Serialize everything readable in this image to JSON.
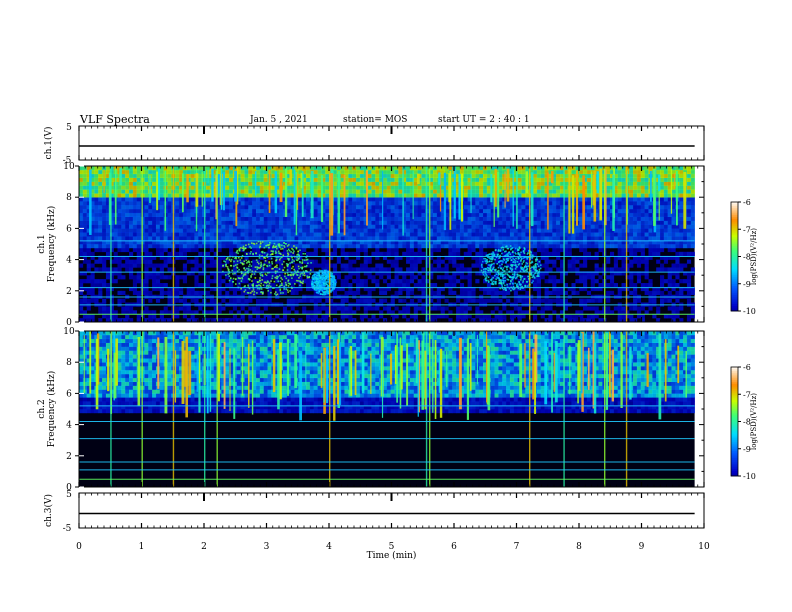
{
  "header": {
    "title": "VLF Spectra",
    "date": "Jan. 5 , 2021",
    "station": "station= MOS",
    "start": "start UT =  2 : 40 : 1"
  },
  "chart_data": [
    {
      "type": "line",
      "panel": "ch1-voltage",
      "ylabel": "ch.1(V)",
      "ylim": [
        -5,
        5
      ],
      "yticks": [
        "5",
        "-5"
      ],
      "x": [
        0,
        9.85
      ],
      "series": [
        {
          "values": [
            0,
            0
          ]
        }
      ]
    },
    {
      "type": "heatmap",
      "panel": "ch1-spectrogram",
      "ylabel": "ch.1\nFrequency (kHz)",
      "ylim": [
        0,
        10
      ],
      "yticks": [
        "0",
        "2",
        "4",
        "6",
        "8",
        "10"
      ],
      "xlim": [
        0,
        10
      ],
      "data_extent_x": [
        0,
        9.85
      ],
      "colorbar": {
        "label": "log(PSD)(V²/Hz)",
        "range": [
          -10,
          -6
        ],
        "ticks": [
          "-6",
          "-7",
          "-8",
          "-9",
          "-10"
        ]
      },
      "horizontal_lines_khz": [
        0.5,
        1.1,
        1.6,
        2.2,
        3.2,
        4.2,
        5.2
      ]
    },
    {
      "type": "heatmap",
      "panel": "ch2-spectrogram",
      "ylabel": "ch.2\nFrequency (kHz)",
      "ylim": [
        0,
        10
      ],
      "yticks": [
        "0",
        "2",
        "4",
        "6",
        "8",
        "10"
      ],
      "xlim": [
        0,
        10
      ],
      "data_extent_x": [
        0,
        9.85
      ],
      "colorbar": {
        "label": "log(PSD)(V²/Hz)",
        "range": [
          -10,
          -6
        ],
        "ticks": [
          "-6",
          "-7",
          "-8",
          "-9",
          "-10"
        ]
      },
      "horizontal_lines_khz": [
        0.5,
        1.1,
        1.6,
        3.1,
        4.2,
        5.2
      ]
    },
    {
      "type": "line",
      "panel": "ch3-voltage",
      "ylabel": "ch.3(V)",
      "ylim": [
        -5,
        5
      ],
      "yticks": [
        "5",
        "-5"
      ],
      "x": [
        0,
        9.85
      ],
      "series": [
        {
          "values": [
            0,
            0
          ]
        }
      ]
    }
  ],
  "xaxis": {
    "label": "Time (min)",
    "ticks": [
      "0",
      "1",
      "2",
      "3",
      "4",
      "5",
      "6",
      "7",
      "8",
      "9",
      "10"
    ],
    "xlim": [
      0,
      10
    ]
  }
}
